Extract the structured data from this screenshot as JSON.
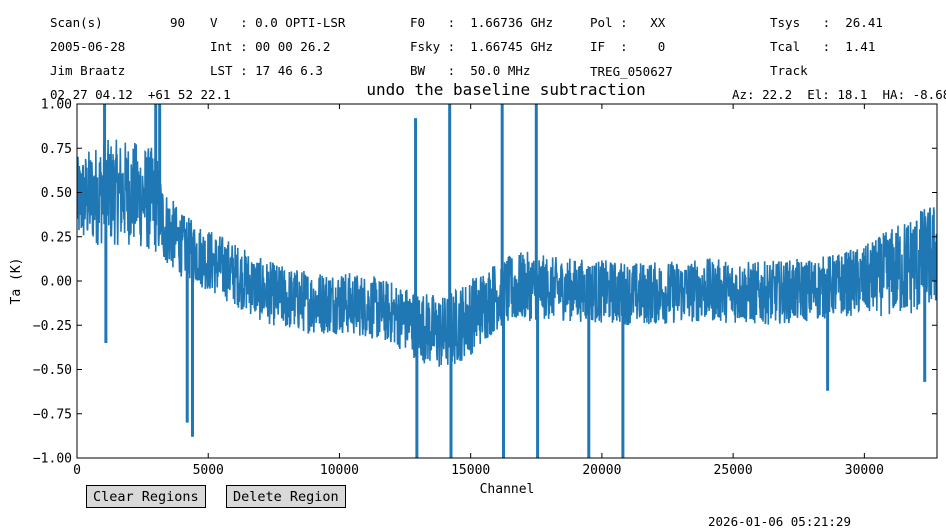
{
  "header": {
    "row1": {
      "scan_label": "Scan(s)",
      "scan_value": "90",
      "v": "V   : 0.0 OPTI-LSR",
      "f0": "F0   :  1.66736 GHz",
      "pol": "Pol :   XX",
      "tsys": "Tsys   :  26.41"
    },
    "row2": {
      "date": "2005-06-28",
      "int": "Int : 00 00 26.2",
      "fsky": "Fsky :  1.66745 GHz",
      "if": "IF  :    0",
      "tcal": "Tcal   :  1.41"
    },
    "row3": {
      "observer": "Jim Braatz",
      "lst": "LST : 17 46 6.3",
      "bw": "BW   :  50.0 MHz",
      "source": "TREG_050627",
      "mode": "Track"
    },
    "coords": "02 27 04.12  +61 52 22.1",
    "azel": "Az: 22.2  El: 18.1  HA: -8.68"
  },
  "chart_data": {
    "type": "line",
    "title": "undo the baseline subtraction",
    "xlabel": "Channel",
    "ylabel": "Ta (K)",
    "xlim": [
      0,
      32768
    ],
    "ylim": [
      -1.0,
      1.0
    ],
    "xticks": [
      0,
      5000,
      10000,
      15000,
      20000,
      25000,
      30000
    ],
    "yticks": [
      -1.0,
      -0.75,
      -0.5,
      -0.25,
      0.0,
      0.25,
      0.5,
      0.75,
      1.0
    ],
    "xtick_labels": [
      "0",
      "5000",
      "10000",
      "15000",
      "20000",
      "25000",
      "30000"
    ],
    "ytick_labels": [
      "−1.00",
      "−0.75",
      "−0.50",
      "−0.25",
      "0.00",
      "0.25",
      "0.50",
      "0.75",
      "1.00"
    ],
    "grid": false,
    "color": "#1f77b4",
    "series": [
      {
        "x": [
          0,
          1000,
          2000,
          3000,
          3300,
          4000,
          5000,
          6000,
          7000,
          8000,
          9000,
          10000,
          11000,
          12000,
          13000,
          14000,
          15000,
          16000,
          17000,
          18000,
          19000,
          20000,
          21000,
          22000,
          23000,
          24000,
          25000,
          26000,
          27000,
          28000,
          29000,
          30000,
          31000,
          32000,
          32768
        ],
        "y": [
          0.45,
          0.5,
          0.5,
          0.45,
          0.32,
          0.2,
          0.12,
          0.04,
          -0.05,
          -0.1,
          -0.12,
          -0.12,
          -0.14,
          -0.18,
          -0.25,
          -0.3,
          -0.2,
          -0.08,
          -0.03,
          -0.04,
          -0.05,
          -0.06,
          -0.07,
          -0.07,
          -0.06,
          -0.05,
          -0.06,
          -0.07,
          -0.06,
          -0.05,
          -0.02,
          0.0,
          0.05,
          0.1,
          0.15
        ],
        "noise_amplitude": [
          0.25,
          0.3,
          0.3,
          0.3,
          0.22,
          0.18,
          0.18,
          0.18,
          0.18,
          0.18,
          0.18,
          0.18,
          0.18,
          0.18,
          0.2,
          0.22,
          0.22,
          0.2,
          0.2,
          0.18,
          0.18,
          0.18,
          0.18,
          0.18,
          0.18,
          0.18,
          0.18,
          0.18,
          0.18,
          0.18,
          0.18,
          0.2,
          0.25,
          0.3,
          0.3
        ]
      }
    ],
    "spikes": [
      {
        "x": 1050,
        "y": 1.0
      },
      {
        "x": 1100,
        "y": -0.35
      },
      {
        "x": 3000,
        "y": 1.0
      },
      {
        "x": 3150,
        "y": 1.0
      },
      {
        "x": 4200,
        "y": -0.8
      },
      {
        "x": 4400,
        "y": -0.88
      },
      {
        "x": 12900,
        "y": 0.92
      },
      {
        "x": 12950,
        "y": -1.0
      },
      {
        "x": 14200,
        "y": 1.0
      },
      {
        "x": 14250,
        "y": -1.0
      },
      {
        "x": 16200,
        "y": 1.0
      },
      {
        "x": 16250,
        "y": -1.0
      },
      {
        "x": 17500,
        "y": 1.0
      },
      {
        "x": 17550,
        "y": -1.0
      },
      {
        "x": 19500,
        "y": -1.0
      },
      {
        "x": 20800,
        "y": -1.0
      },
      {
        "x": 28600,
        "y": -0.62
      },
      {
        "x": 32300,
        "y": -0.57
      }
    ]
  },
  "buttons": {
    "clear": "Clear Regions",
    "delete": "Delete Region"
  },
  "timestamp": "2026-01-06 05:21:29"
}
